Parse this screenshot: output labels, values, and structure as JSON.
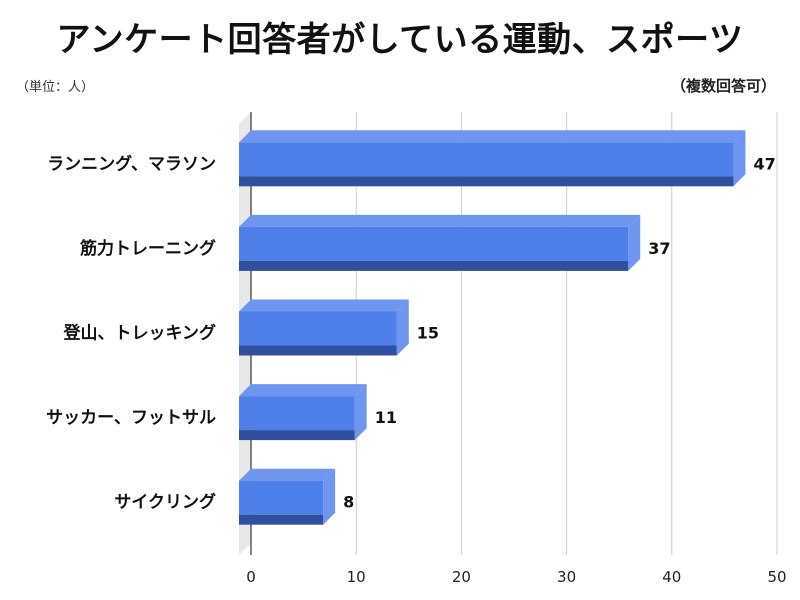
{
  "header": {
    "title": "アンケート回答者がしている運動、スポーツ",
    "unit_note": "（単位：人）",
    "multi_note": "（複数回答可）"
  },
  "colors": {
    "bar_front": "#4f7fe8",
    "bar_top": "#6f96ee",
    "bar_side": "#3b62c4",
    "bar_bottom": "#2f4f9f",
    "grid": "#cccccc",
    "wall": "#e8e8e8"
  },
  "chart_data": {
    "type": "bar",
    "orientation": "horizontal",
    "categories": [
      "ランニング、マラソン",
      "筋力トレーニング",
      "登山、トレッキング",
      "サッカー、フットサル",
      "サイクリング"
    ],
    "values": [
      47,
      37,
      15,
      11,
      8
    ],
    "value_labels": [
      "47",
      "37",
      "15",
      "11",
      "8"
    ],
    "xlim": [
      0,
      50
    ],
    "xticks": [
      0,
      10,
      20,
      30,
      40,
      50
    ],
    "xtick_labels": [
      "0",
      "10",
      "20",
      "30",
      "40",
      "50"
    ],
    "grid": true,
    "style": "3d"
  }
}
